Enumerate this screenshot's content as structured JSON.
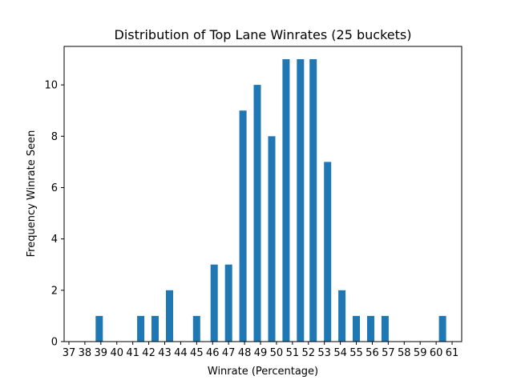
{
  "chart_data": {
    "type": "bar",
    "title": "Distribution of Top Lane Winrates (25 buckets)",
    "xlabel": "Winrate (Percentage)",
    "ylabel": "Frequency Winrate Seen",
    "xlim": [
      37,
      61
    ],
    "ylim": [
      0,
      11.5
    ],
    "xticks": [
      37,
      38,
      39,
      40,
      41,
      42,
      43,
      44,
      45,
      46,
      47,
      48,
      49,
      50,
      51,
      52,
      53,
      54,
      55,
      56,
      57,
      58,
      59,
      60,
      61
    ],
    "yticks": [
      0,
      2,
      4,
      6,
      8,
      10
    ],
    "grid": false,
    "bar_color": "#1f77b4",
    "bars": [
      {
        "x": 38.9,
        "value": 1
      },
      {
        "x": 41.5,
        "value": 1
      },
      {
        "x": 42.4,
        "value": 1
      },
      {
        "x": 43.3,
        "value": 2
      },
      {
        "x": 45.0,
        "value": 1
      },
      {
        "x": 46.1,
        "value": 3
      },
      {
        "x": 47.0,
        "value": 3
      },
      {
        "x": 47.9,
        "value": 9
      },
      {
        "x": 48.8,
        "value": 10
      },
      {
        "x": 49.7,
        "value": 8
      },
      {
        "x": 50.6,
        "value": 11
      },
      {
        "x": 51.5,
        "value": 11
      },
      {
        "x": 52.3,
        "value": 11
      },
      {
        "x": 53.2,
        "value": 7
      },
      {
        "x": 54.1,
        "value": 2
      },
      {
        "x": 55.0,
        "value": 1
      },
      {
        "x": 55.9,
        "value": 1
      },
      {
        "x": 56.8,
        "value": 1
      },
      {
        "x": 60.4,
        "value": 1
      }
    ]
  }
}
